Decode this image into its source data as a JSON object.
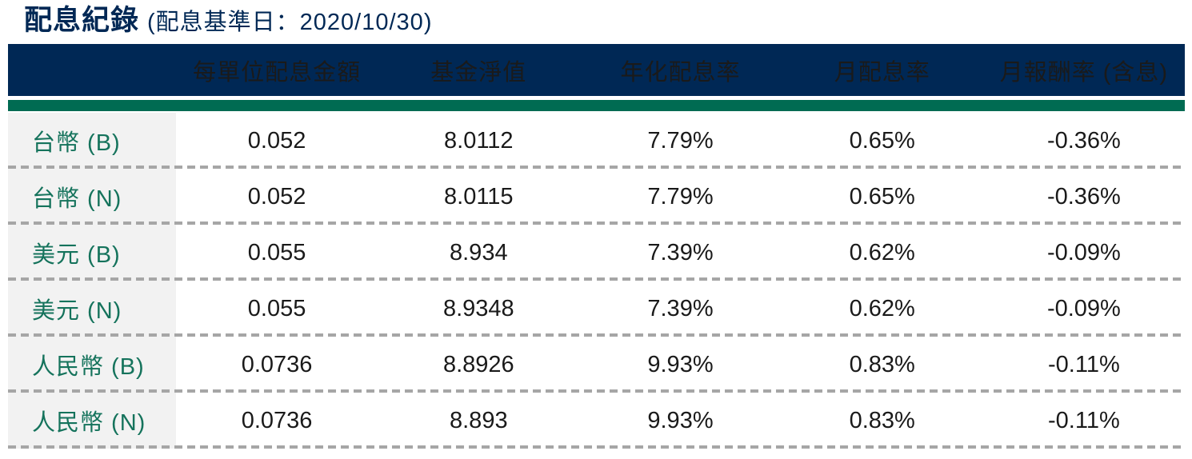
{
  "page": {
    "title": "配息紀錄",
    "title_note": "(配息基準日：2020/10/30)"
  },
  "colors": {
    "title_text": "#002855",
    "header_bg": "#002855",
    "accent_bar": "#006B52",
    "label_col_bg": "#F2F2F2",
    "label_text": "#15735C",
    "divider": "#A6A6A6",
    "value_text": "#1A1A1A"
  },
  "table": {
    "header": [
      "每單位配息金額",
      "基金淨值",
      "年化配息率",
      "月配息率",
      "月報酬率 (含息)"
    ],
    "rows": [
      {
        "label": "台幣 (B)",
        "values": [
          "0.052",
          "8.0112",
          "7.79%",
          "0.65%",
          "-0.36%"
        ]
      },
      {
        "label": "台幣 (N)",
        "values": [
          "0.052",
          "8.0115",
          "7.79%",
          "0.65%",
          "-0.36%"
        ]
      },
      {
        "label": "美元 (B)",
        "values": [
          "0.055",
          "8.934",
          "7.39%",
          "0.62%",
          "-0.09%"
        ]
      },
      {
        "label": "美元 (N)",
        "values": [
          "0.055",
          "8.9348",
          "7.39%",
          "0.62%",
          "-0.09%"
        ]
      },
      {
        "label": "人民幣 (B)",
        "values": [
          "0.0736",
          "8.8926",
          "9.93%",
          "0.83%",
          "-0.11%"
        ]
      },
      {
        "label": "人民幣 (N)",
        "values": [
          "0.0736",
          "8.893",
          "9.93%",
          "0.83%",
          "-0.11%"
        ]
      }
    ]
  }
}
